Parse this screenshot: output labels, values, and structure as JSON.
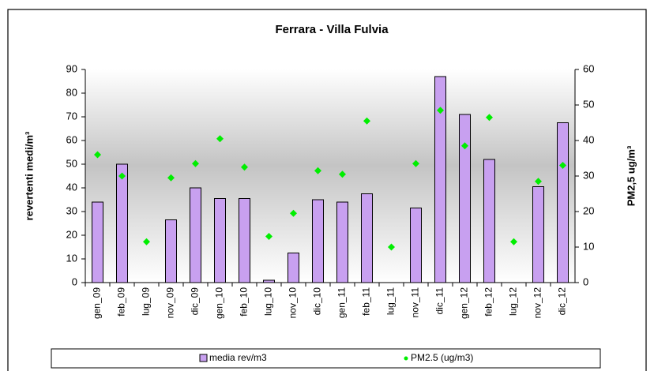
{
  "chart_data": {
    "type": "bar",
    "title": "Ferrara - Villa Fulvia",
    "y_label": "revertenti medi/m³",
    "y2_label": "PM2,5 ug/m³",
    "categories": [
      "gen_09",
      "feb_09",
      "lug_09",
      "nov_09",
      "dic_09",
      "gen_10",
      "feb_10",
      "lug_10",
      "nov_10",
      "dic_10",
      "gen_11",
      "feb_11",
      "lug_11",
      "nov_11",
      "dic_11",
      "gen_12",
      "feb_12",
      "lug_12",
      "nov_12",
      "dic_12"
    ],
    "series": [
      {
        "name": "media rev/m3",
        "color": "#c8a0f0",
        "marker": "bar",
        "values": [
          34,
          50,
          null,
          26.5,
          40,
          35.5,
          35.5,
          1,
          12.5,
          35,
          34,
          37.5,
          null,
          31.5,
          87,
          71,
          52,
          null,
          40.5,
          67.5
        ]
      },
      {
        "name": "PM2.5 (ug/m3)",
        "color": "#00ee00",
        "marker": "diamond",
        "axis": "y2",
        "values": [
          36,
          30,
          11.5,
          29.5,
          33.5,
          40.5,
          32.5,
          13,
          19.5,
          31.5,
          30.5,
          45.5,
          10,
          33.5,
          48.5,
          38.5,
          46.5,
          11.5,
          28.5,
          33
        ]
      }
    ],
    "ylim": [
      0,
      90
    ],
    "yticks": [
      0,
      10,
      20,
      30,
      40,
      50,
      60,
      70,
      80,
      90
    ],
    "y2lim": [
      0,
      60
    ],
    "y2ticks": [
      0,
      10,
      20,
      30,
      40,
      50,
      60
    ],
    "legend": "bottom"
  }
}
